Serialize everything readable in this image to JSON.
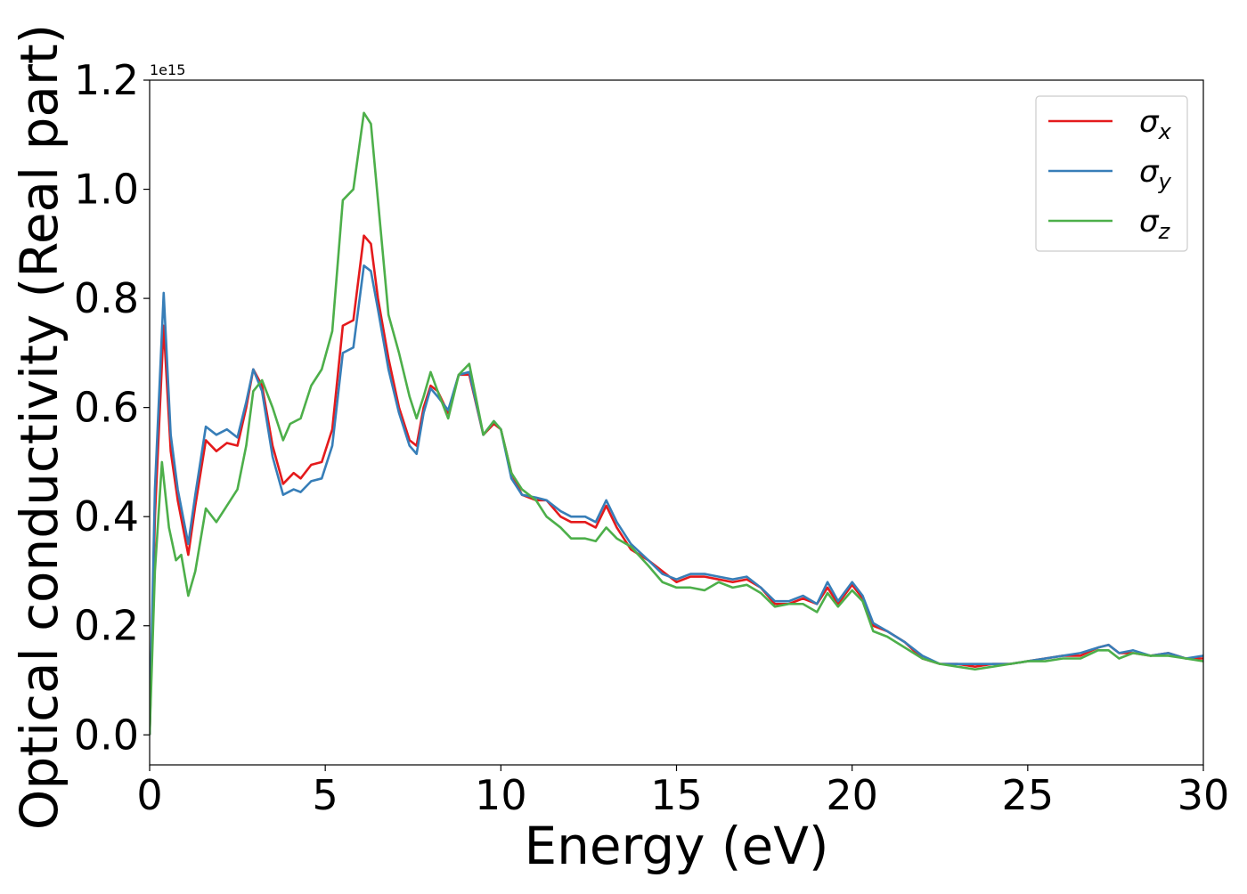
{
  "chart_data": {
    "type": "line",
    "xlabel": "Energy (eV)",
    "ylabel": "Optical conductivity (Real part)",
    "offset_text": "1e15",
    "xlim": [
      0,
      30
    ],
    "ylim": [
      -0.055,
      1.2
    ],
    "x_ticks": [
      0,
      5,
      10,
      15,
      20,
      25,
      30
    ],
    "x_tick_labels": [
      "0",
      "5",
      "10",
      "15",
      "20",
      "25",
      "30"
    ],
    "y_ticks": [
      0.0,
      0.2,
      0.4,
      0.6,
      0.8,
      1.0,
      1.2
    ],
    "y_tick_labels": [
      "0.0",
      "0.2",
      "0.4",
      "0.6",
      "0.8",
      "1.0",
      "1.2"
    ],
    "grid": false,
    "legend_position": "top-right",
    "series": [
      {
        "name": "σx",
        "legend_base": "σ",
        "legend_sub": "x",
        "color": "#e41a1c",
        "points": [
          [
            0,
            0
          ],
          [
            0.15,
            0.4
          ],
          [
            0.4,
            0.75
          ],
          [
            0.6,
            0.52
          ],
          [
            0.8,
            0.43
          ],
          [
            1.1,
            0.33
          ],
          [
            1.3,
            0.42
          ],
          [
            1.6,
            0.54
          ],
          [
            1.9,
            0.52
          ],
          [
            2.2,
            0.535
          ],
          [
            2.5,
            0.53
          ],
          [
            2.75,
            0.6
          ],
          [
            2.95,
            0.67
          ],
          [
            3.2,
            0.64
          ],
          [
            3.5,
            0.53
          ],
          [
            3.8,
            0.46
          ],
          [
            4.1,
            0.48
          ],
          [
            4.3,
            0.47
          ],
          [
            4.6,
            0.495
          ],
          [
            4.9,
            0.5
          ],
          [
            5.2,
            0.56
          ],
          [
            5.5,
            0.75
          ],
          [
            5.8,
            0.76
          ],
          [
            6.1,
            0.915
          ],
          [
            6.3,
            0.9
          ],
          [
            6.5,
            0.8
          ],
          [
            6.8,
            0.69
          ],
          [
            7.1,
            0.6
          ],
          [
            7.4,
            0.54
          ],
          [
            7.6,
            0.53
          ],
          [
            7.8,
            0.6
          ],
          [
            8.0,
            0.64
          ],
          [
            8.2,
            0.63
          ],
          [
            8.5,
            0.59
          ],
          [
            8.8,
            0.66
          ],
          [
            9.1,
            0.66
          ],
          [
            9.5,
            0.55
          ],
          [
            9.8,
            0.57
          ],
          [
            10.0,
            0.56
          ],
          [
            10.3,
            0.48
          ],
          [
            10.6,
            0.44
          ],
          [
            11.0,
            0.43
          ],
          [
            11.3,
            0.43
          ],
          [
            11.7,
            0.4
          ],
          [
            12.0,
            0.39
          ],
          [
            12.4,
            0.39
          ],
          [
            12.7,
            0.38
          ],
          [
            13.0,
            0.42
          ],
          [
            13.3,
            0.38
          ],
          [
            13.7,
            0.34
          ],
          [
            14.2,
            0.32
          ],
          [
            14.6,
            0.3
          ],
          [
            15.0,
            0.28
          ],
          [
            15.4,
            0.29
          ],
          [
            15.8,
            0.29
          ],
          [
            16.2,
            0.285
          ],
          [
            16.6,
            0.28
          ],
          [
            17.0,
            0.285
          ],
          [
            17.4,
            0.27
          ],
          [
            17.8,
            0.24
          ],
          [
            18.2,
            0.24
          ],
          [
            18.6,
            0.25
          ],
          [
            19.0,
            0.24
          ],
          [
            19.3,
            0.27
          ],
          [
            19.6,
            0.24
          ],
          [
            20.0,
            0.275
          ],
          [
            20.3,
            0.25
          ],
          [
            20.6,
            0.2
          ],
          [
            21.0,
            0.19
          ],
          [
            21.5,
            0.17
          ],
          [
            22.0,
            0.14
          ],
          [
            22.5,
            0.13
          ],
          [
            23.0,
            0.13
          ],
          [
            23.5,
            0.125
          ],
          [
            24.0,
            0.13
          ],
          [
            24.5,
            0.13
          ],
          [
            25.0,
            0.135
          ],
          [
            25.5,
            0.14
          ],
          [
            26.0,
            0.145
          ],
          [
            26.5,
            0.145
          ],
          [
            27.0,
            0.16
          ],
          [
            27.3,
            0.165
          ],
          [
            27.6,
            0.15
          ],
          [
            28.0,
            0.15
          ],
          [
            28.5,
            0.145
          ],
          [
            29.0,
            0.15
          ],
          [
            29.5,
            0.14
          ],
          [
            30,
            0.14
          ]
        ]
      },
      {
        "name": "σy",
        "legend_base": "σ",
        "legend_sub": "y",
        "color": "#377eb8",
        "points": [
          [
            0,
            0
          ],
          [
            0.15,
            0.45
          ],
          [
            0.4,
            0.81
          ],
          [
            0.6,
            0.55
          ],
          [
            0.8,
            0.45
          ],
          [
            1.1,
            0.35
          ],
          [
            1.3,
            0.44
          ],
          [
            1.6,
            0.565
          ],
          [
            1.9,
            0.55
          ],
          [
            2.2,
            0.56
          ],
          [
            2.5,
            0.545
          ],
          [
            2.75,
            0.61
          ],
          [
            2.95,
            0.67
          ],
          [
            3.2,
            0.63
          ],
          [
            3.5,
            0.51
          ],
          [
            3.8,
            0.44
          ],
          [
            4.1,
            0.45
          ],
          [
            4.3,
            0.445
          ],
          [
            4.6,
            0.465
          ],
          [
            4.9,
            0.47
          ],
          [
            5.2,
            0.53
          ],
          [
            5.5,
            0.7
          ],
          [
            5.8,
            0.71
          ],
          [
            6.1,
            0.86
          ],
          [
            6.3,
            0.85
          ],
          [
            6.5,
            0.78
          ],
          [
            6.8,
            0.67
          ],
          [
            7.1,
            0.59
          ],
          [
            7.4,
            0.53
          ],
          [
            7.6,
            0.515
          ],
          [
            7.8,
            0.59
          ],
          [
            8.0,
            0.635
          ],
          [
            8.2,
            0.62
          ],
          [
            8.5,
            0.595
          ],
          [
            8.8,
            0.66
          ],
          [
            9.1,
            0.665
          ],
          [
            9.5,
            0.55
          ],
          [
            9.8,
            0.575
          ],
          [
            10.0,
            0.56
          ],
          [
            10.3,
            0.47
          ],
          [
            10.6,
            0.44
          ],
          [
            11.0,
            0.435
          ],
          [
            11.3,
            0.43
          ],
          [
            11.7,
            0.41
          ],
          [
            12.0,
            0.4
          ],
          [
            12.4,
            0.4
          ],
          [
            12.7,
            0.39
          ],
          [
            13.0,
            0.43
          ],
          [
            13.3,
            0.39
          ],
          [
            13.7,
            0.35
          ],
          [
            14.2,
            0.32
          ],
          [
            14.6,
            0.295
          ],
          [
            15.0,
            0.285
          ],
          [
            15.4,
            0.295
          ],
          [
            15.8,
            0.295
          ],
          [
            16.2,
            0.29
          ],
          [
            16.6,
            0.285
          ],
          [
            17.0,
            0.29
          ],
          [
            17.4,
            0.27
          ],
          [
            17.8,
            0.245
          ],
          [
            18.2,
            0.245
          ],
          [
            18.6,
            0.255
          ],
          [
            19.0,
            0.24
          ],
          [
            19.3,
            0.28
          ],
          [
            19.6,
            0.245
          ],
          [
            20.0,
            0.28
          ],
          [
            20.3,
            0.255
          ],
          [
            20.6,
            0.205
          ],
          [
            21.0,
            0.19
          ],
          [
            21.5,
            0.17
          ],
          [
            22.0,
            0.145
          ],
          [
            22.5,
            0.13
          ],
          [
            23.0,
            0.13
          ],
          [
            23.5,
            0.13
          ],
          [
            24.0,
            0.13
          ],
          [
            24.5,
            0.13
          ],
          [
            25.0,
            0.135
          ],
          [
            25.5,
            0.14
          ],
          [
            26.0,
            0.145
          ],
          [
            26.5,
            0.15
          ],
          [
            27.0,
            0.16
          ],
          [
            27.3,
            0.165
          ],
          [
            27.6,
            0.15
          ],
          [
            28.0,
            0.155
          ],
          [
            28.5,
            0.145
          ],
          [
            29.0,
            0.15
          ],
          [
            29.5,
            0.14
          ],
          [
            30,
            0.145
          ]
        ]
      },
      {
        "name": "σz",
        "legend_base": "σ",
        "legend_sub": "z",
        "color": "#4daf4a",
        "points": [
          [
            0,
            0
          ],
          [
            0.15,
            0.3
          ],
          [
            0.35,
            0.5
          ],
          [
            0.55,
            0.38
          ],
          [
            0.75,
            0.32
          ],
          [
            0.9,
            0.33
          ],
          [
            1.1,
            0.255
          ],
          [
            1.3,
            0.3
          ],
          [
            1.6,
            0.415
          ],
          [
            1.9,
            0.39
          ],
          [
            2.2,
            0.42
          ],
          [
            2.5,
            0.45
          ],
          [
            2.75,
            0.53
          ],
          [
            2.95,
            0.63
          ],
          [
            3.2,
            0.65
          ],
          [
            3.5,
            0.6
          ],
          [
            3.8,
            0.54
          ],
          [
            4.0,
            0.57
          ],
          [
            4.3,
            0.58
          ],
          [
            4.6,
            0.64
          ],
          [
            4.9,
            0.67
          ],
          [
            5.2,
            0.74
          ],
          [
            5.5,
            0.98
          ],
          [
            5.8,
            1.0
          ],
          [
            6.1,
            1.14
          ],
          [
            6.3,
            1.12
          ],
          [
            6.5,
            0.98
          ],
          [
            6.8,
            0.77
          ],
          [
            7.1,
            0.7
          ],
          [
            7.4,
            0.62
          ],
          [
            7.6,
            0.58
          ],
          [
            7.8,
            0.62
          ],
          [
            8.0,
            0.665
          ],
          [
            8.2,
            0.63
          ],
          [
            8.5,
            0.58
          ],
          [
            8.8,
            0.66
          ],
          [
            9.1,
            0.68
          ],
          [
            9.5,
            0.55
          ],
          [
            9.8,
            0.575
          ],
          [
            10.0,
            0.56
          ],
          [
            10.3,
            0.48
          ],
          [
            10.6,
            0.45
          ],
          [
            11.0,
            0.43
          ],
          [
            11.3,
            0.4
          ],
          [
            11.7,
            0.38
          ],
          [
            12.0,
            0.36
          ],
          [
            12.4,
            0.36
          ],
          [
            12.7,
            0.355
          ],
          [
            13.0,
            0.38
          ],
          [
            13.3,
            0.36
          ],
          [
            13.7,
            0.345
          ],
          [
            14.2,
            0.31
          ],
          [
            14.6,
            0.28
          ],
          [
            15.0,
            0.27
          ],
          [
            15.4,
            0.27
          ],
          [
            15.8,
            0.265
          ],
          [
            16.2,
            0.28
          ],
          [
            16.6,
            0.27
          ],
          [
            17.0,
            0.275
          ],
          [
            17.4,
            0.26
          ],
          [
            17.8,
            0.235
          ],
          [
            18.2,
            0.24
          ],
          [
            18.6,
            0.24
          ],
          [
            19.0,
            0.225
          ],
          [
            19.3,
            0.26
          ],
          [
            19.6,
            0.235
          ],
          [
            20.0,
            0.265
          ],
          [
            20.3,
            0.245
          ],
          [
            20.6,
            0.19
          ],
          [
            21.0,
            0.18
          ],
          [
            21.5,
            0.16
          ],
          [
            22.0,
            0.14
          ],
          [
            22.5,
            0.13
          ],
          [
            23.0,
            0.125
          ],
          [
            23.5,
            0.12
          ],
          [
            24.0,
            0.125
          ],
          [
            24.5,
            0.13
          ],
          [
            25.0,
            0.135
          ],
          [
            25.5,
            0.135
          ],
          [
            26.0,
            0.14
          ],
          [
            26.5,
            0.14
          ],
          [
            27.0,
            0.155
          ],
          [
            27.3,
            0.155
          ],
          [
            27.6,
            0.14
          ],
          [
            28.0,
            0.15
          ],
          [
            28.5,
            0.145
          ],
          [
            29.0,
            0.145
          ],
          [
            29.5,
            0.14
          ],
          [
            30,
            0.135
          ]
        ]
      }
    ]
  }
}
